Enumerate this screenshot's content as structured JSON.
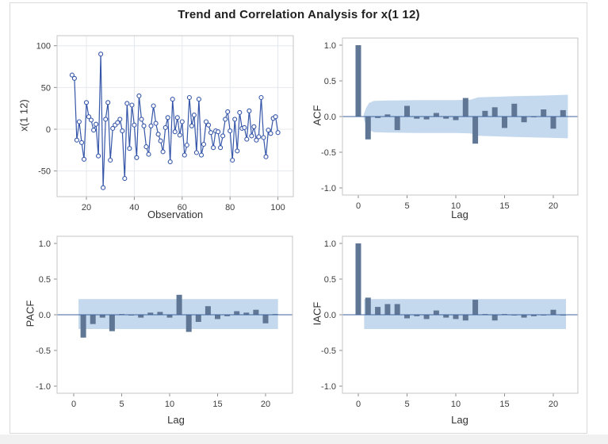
{
  "figure": {
    "title": "Trend and Correlation Analysis for x(1 12)",
    "colors": {
      "bar": "#5f7795",
      "band": "#c5d9ee",
      "line": "#3556a8",
      "marker_fill": "#ffffff",
      "zero_line": "#3f639c",
      "frame": "#c6c6c6",
      "grid": "#e4e8ee",
      "tick_mark": "#8c8c8c",
      "tick_text": "#3c3c3c",
      "title_text": "#1f1f1f"
    }
  },
  "chart_data": [
    {
      "id": "trend",
      "type": "line",
      "xlabel": "Observation",
      "ylabel": "x(1 12)",
      "x_start": 14,
      "values": [
        65,
        61,
        -13,
        9,
        -16,
        -36,
        32,
        15,
        11,
        -1,
        6,
        -32,
        90,
        -70,
        12,
        32,
        -37,
        1,
        5,
        8,
        12,
        -2,
        -59,
        31,
        -23,
        29,
        5,
        -34,
        40,
        12,
        4,
        -21,
        -30,
        4,
        28,
        7,
        -6,
        -14,
        -27,
        2,
        14,
        -39,
        36,
        -3,
        14,
        -7,
        9,
        -31,
        -19,
        38,
        4,
        17,
        -28,
        36,
        -31,
        -18,
        9,
        5,
        -4,
        -22,
        -2,
        -3,
        -22,
        -8,
        12,
        21,
        -2,
        -37,
        12,
        -26,
        20,
        1,
        2,
        -12,
        22,
        -8,
        3,
        -13,
        -9,
        38,
        -10,
        -33,
        -1,
        -5,
        13,
        15,
        -4
      ],
      "xlim": [
        7.7,
        106.4
      ],
      "ylim": [
        -81,
        112
      ],
      "grid": true,
      "xticks": [
        {
          "v": 20,
          "t": "20"
        },
        {
          "v": 40,
          "t": "40"
        },
        {
          "v": 60,
          "t": "60"
        },
        {
          "v": 80,
          "t": "80"
        },
        {
          "v": 100,
          "t": "100"
        }
      ],
      "yticks": [
        {
          "v": 100,
          "t": "100"
        },
        {
          "v": 50,
          "t": "50"
        },
        {
          "v": 0,
          "t": "0"
        },
        {
          "v": -50,
          "t": "-50"
        }
      ]
    },
    {
      "id": "acf",
      "type": "bar",
      "xlabel": "Lag",
      "ylabel": "ACF",
      "start_lag": 0,
      "values": [
        1.0,
        -0.32,
        -0.02,
        0.03,
        -0.19,
        0.15,
        -0.03,
        -0.04,
        0.05,
        -0.03,
        -0.05,
        0.26,
        -0.38,
        0.08,
        0.13,
        -0.16,
        0.18,
        -0.08,
        -0.01,
        0.1,
        -0.17,
        0.09
      ],
      "band": {
        "shape": "tapered",
        "x": [
          0.55,
          0.8,
          1.1,
          1.6,
          3,
          6,
          10,
          11.5,
          12.3,
          13.5,
          16,
          19,
          21.5
        ],
        "upper": [
          0.03,
          0.12,
          0.19,
          0.22,
          0.225,
          0.23,
          0.23,
          0.235,
          0.27,
          0.275,
          0.285,
          0.295,
          0.305
        ]
      },
      "xlim": [
        -1.6,
        22.5
      ],
      "ylim": [
        -1.1,
        1.1
      ],
      "xticks": [
        {
          "v": 0,
          "t": "0"
        },
        {
          "v": 5,
          "t": "5"
        },
        {
          "v": 10,
          "t": "10"
        },
        {
          "v": 15,
          "t": "15"
        },
        {
          "v": 20,
          "t": "20"
        }
      ],
      "yticks": [
        {
          "v": 1,
          "t": "1.0"
        },
        {
          "v": 0.5,
          "t": "0.5"
        },
        {
          "v": 0,
          "t": "0.0"
        },
        {
          "v": -0.5,
          "t": "-0.5"
        },
        {
          "v": -1,
          "t": "-1.0"
        }
      ]
    },
    {
      "id": "pacf",
      "type": "bar",
      "xlabel": "Lag",
      "ylabel": "PACF",
      "start_lag": 1,
      "values": [
        -0.32,
        -0.13,
        -0.04,
        -0.23,
        0.01,
        -0.01,
        -0.04,
        0.03,
        0.04,
        -0.04,
        0.28,
        -0.24,
        -0.1,
        0.12,
        -0.06,
        -0.02,
        0.05,
        0.03,
        0.07,
        -0.12,
        0.01
      ],
      "band": {
        "shape": "rect",
        "x0": 0.5,
        "x1": 21.3,
        "upper": 0.22,
        "lower": -0.2
      },
      "xlim": [
        -1.7,
        22.8
      ],
      "ylim": [
        -1.1,
        1.1
      ],
      "xticks": [
        {
          "v": 0,
          "t": "0"
        },
        {
          "v": 5,
          "t": "5"
        },
        {
          "v": 10,
          "t": "10"
        },
        {
          "v": 15,
          "t": "15"
        },
        {
          "v": 20,
          "t": "20"
        }
      ],
      "yticks": [
        {
          "v": 1,
          "t": "1.0"
        },
        {
          "v": 0.5,
          "t": "0.5"
        },
        {
          "v": 0,
          "t": "0.0"
        },
        {
          "v": -0.5,
          "t": "-0.5"
        },
        {
          "v": -1,
          "t": "-1.0"
        }
      ]
    },
    {
      "id": "iacf",
      "type": "bar",
      "xlabel": "Lag",
      "ylabel": "IACF",
      "start_lag": 0,
      "values": [
        1.0,
        0.24,
        0.11,
        0.15,
        0.15,
        -0.05,
        -0.02,
        -0.06,
        0.06,
        -0.04,
        -0.06,
        -0.08,
        0.21,
        0.01,
        -0.08,
        0.01,
        -0.01,
        -0.04,
        -0.02,
        -0.01,
        0.07,
        -0.01
      ],
      "band": {
        "shape": "rect",
        "x0": 0.6,
        "x1": 21.3,
        "upper": 0.22,
        "lower": -0.2
      },
      "xlim": [
        -1.6,
        22.5
      ],
      "ylim": [
        -1.1,
        1.1
      ],
      "xticks": [
        {
          "v": 0,
          "t": "0"
        },
        {
          "v": 5,
          "t": "5"
        },
        {
          "v": 10,
          "t": "10"
        },
        {
          "v": 15,
          "t": "15"
        },
        {
          "v": 20,
          "t": "20"
        }
      ],
      "yticks": [
        {
          "v": 1,
          "t": "1.0"
        },
        {
          "v": 0.5,
          "t": "0.5"
        },
        {
          "v": 0,
          "t": "0.0"
        },
        {
          "v": -0.5,
          "t": "-0.5"
        },
        {
          "v": -1,
          "t": "-1.0"
        }
      ]
    }
  ]
}
